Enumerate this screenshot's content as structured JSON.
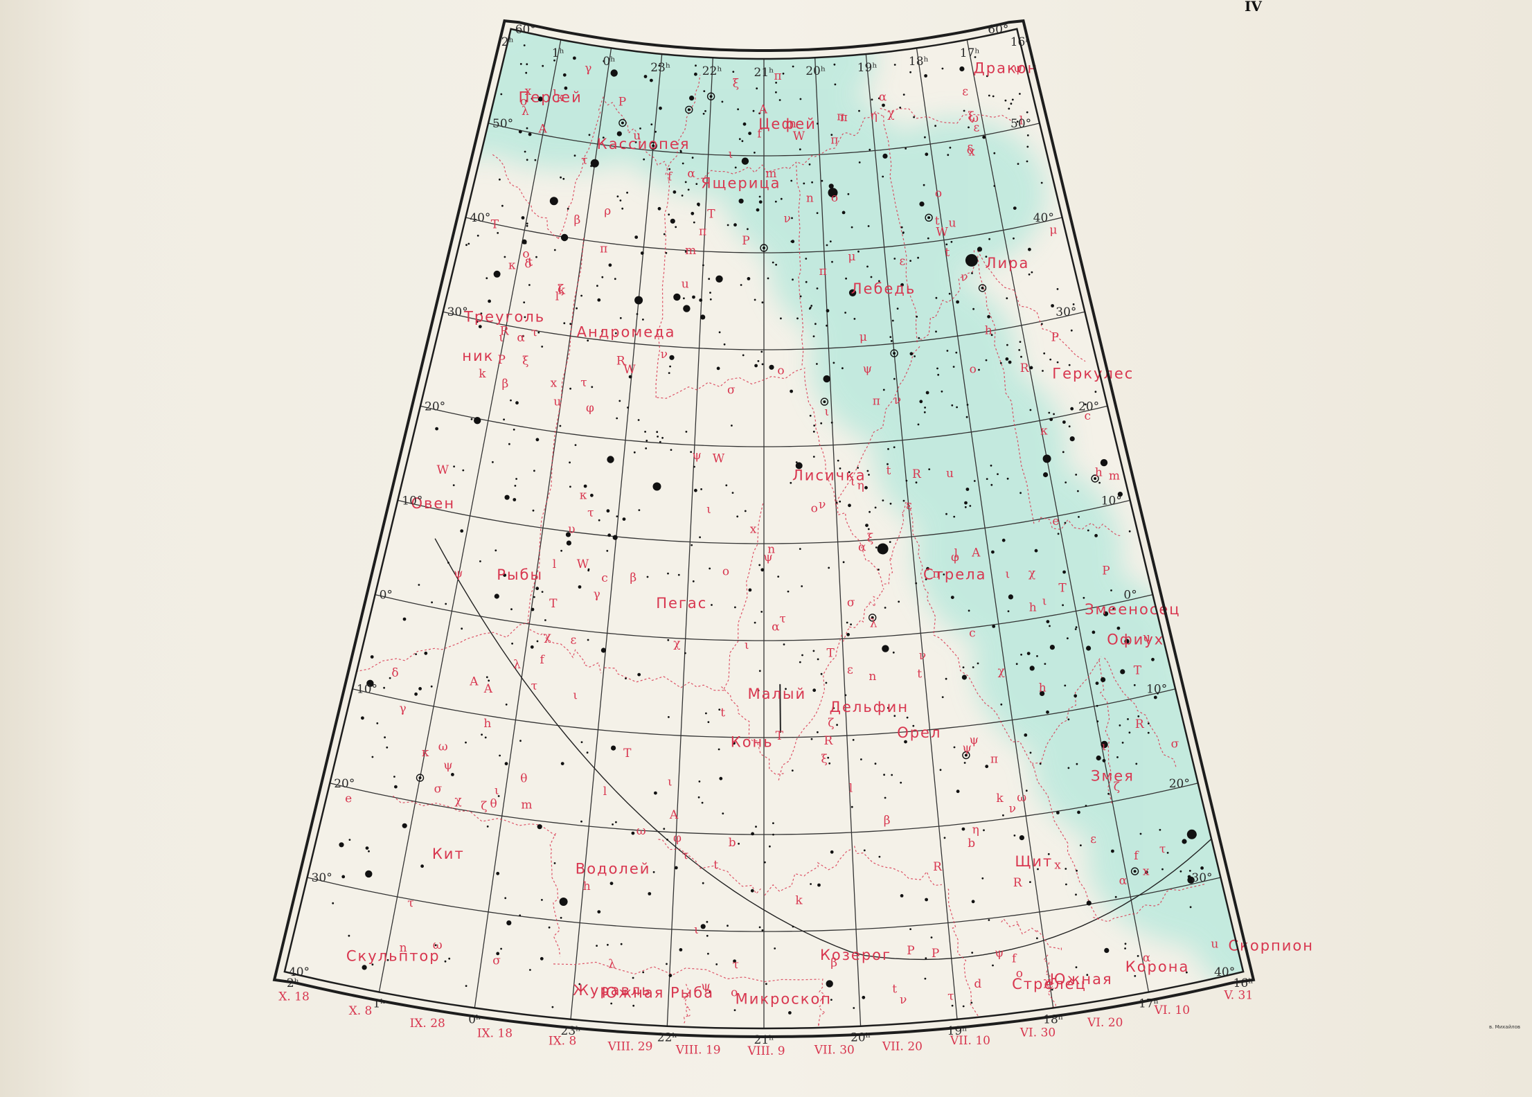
{
  "plate_number": "IV",
  "engraver_signature": "в. Михайлов",
  "colors": {
    "paper": "#f4f1e8",
    "milky_way": "#b6e8dc",
    "stars": "#111111",
    "labels": "#d8364f",
    "grid": "#333333"
  },
  "constellations": [
    {
      "name": "Персей"
    },
    {
      "name": "Кассиопея"
    },
    {
      "name": "Цефей"
    },
    {
      "name": "Дракон"
    },
    {
      "name": "Ящерица"
    },
    {
      "name": "Лебедь"
    },
    {
      "name": "Лира"
    },
    {
      "name": "Треуголь"
    },
    {
      "name": "ник"
    },
    {
      "name": "Андромеда"
    },
    {
      "name": "Геркулес"
    },
    {
      "name": "Лисичка"
    },
    {
      "name": "Овен"
    },
    {
      "name": "Рыбы"
    },
    {
      "name": "Пегас"
    },
    {
      "name": "Стрела"
    },
    {
      "name": "Змееносец"
    },
    {
      "name": "Офиух"
    },
    {
      "name": "Малый"
    },
    {
      "name": "Конь"
    },
    {
      "name": "Дельфин"
    },
    {
      "name": "Орел"
    },
    {
      "name": "Змея"
    },
    {
      "name": "Кит"
    },
    {
      "name": "Водолей"
    },
    {
      "name": "Щит"
    },
    {
      "name": "Козерог"
    },
    {
      "name": "Скульптор"
    },
    {
      "name": "Южная Рыба"
    },
    {
      "name": "Стрелец"
    },
    {
      "name": "Скорпион"
    },
    {
      "name": "Журавль"
    },
    {
      "name": "Микроскоп"
    },
    {
      "name": "Южная"
    },
    {
      "name": "Корона"
    }
  ],
  "ra_hours_top": [
    "2ʰ",
    "1ʰ",
    "0ʰ",
    "23ʰ",
    "22ʰ",
    "21ʰ",
    "20ʰ",
    "19ʰ",
    "18ʰ",
    "17ʰ",
    "16ʰ"
  ],
  "ra_hours_bottom": [
    "2ʰ",
    "1ʰ",
    "0ʰ",
    "23ʰ",
    "22ʰ",
    "21ʰ",
    "20ʰ",
    "19ʰ",
    "18ʰ",
    "17ʰ",
    "16ʰ"
  ],
  "declination_left": [
    "60°",
    "50°",
    "40°",
    "30°",
    "20°",
    "10°",
    "0°",
    "10°",
    "20°",
    "30°",
    "40°"
  ],
  "declination_right": [
    "60°",
    "50°",
    "40°",
    "30°",
    "20°",
    "10°",
    "0°",
    "10°",
    "20°",
    "30°",
    "40°"
  ],
  "midnight_dates": [
    "X. 18",
    "X. 8",
    "IX. 28",
    "IX. 18",
    "IX. 8",
    "VIII. 29",
    "VIII. 19",
    "VIII. 9",
    "VII. 30",
    "VII. 20",
    "VII. 10",
    "VI. 30",
    "VI. 20",
    "VI. 10",
    "V. 31"
  ],
  "star_letters": [
    {
      "text": "χ"
    },
    {
      "text": "η"
    },
    {
      "text": "γ"
    },
    {
      "text": "α"
    },
    {
      "text": "β"
    },
    {
      "text": "ε"
    },
    {
      "text": "δ"
    },
    {
      "text": "ζ"
    },
    {
      "text": "θ"
    },
    {
      "text": "ι"
    },
    {
      "text": "κ"
    },
    {
      "text": "λ"
    },
    {
      "text": "μ"
    },
    {
      "text": "ν"
    },
    {
      "text": "ξ"
    },
    {
      "text": "π"
    },
    {
      "text": "ρ"
    },
    {
      "text": "σ"
    },
    {
      "text": "τ"
    },
    {
      "text": "υ"
    },
    {
      "text": "φ"
    },
    {
      "text": "ψ"
    },
    {
      "text": "ω"
    },
    {
      "text": "ο"
    },
    {
      "text": "A"
    },
    {
      "text": "R"
    },
    {
      "text": "W"
    },
    {
      "text": "T"
    },
    {
      "text": "P"
    },
    {
      "text": "d"
    },
    {
      "text": "b"
    },
    {
      "text": "c"
    },
    {
      "text": "e"
    },
    {
      "text": "f"
    },
    {
      "text": "h"
    },
    {
      "text": "k"
    },
    {
      "text": "l"
    },
    {
      "text": "m"
    },
    {
      "text": "n"
    },
    {
      "text": "t"
    },
    {
      "text": "u"
    },
    {
      "text": "x"
    }
  ]
}
